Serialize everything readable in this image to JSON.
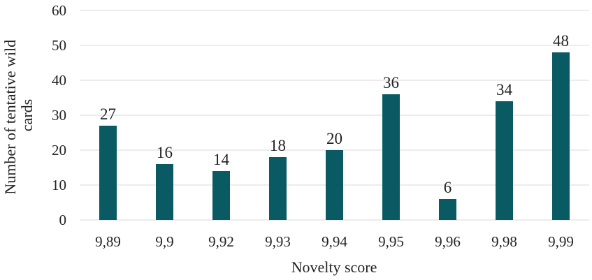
{
  "chart_data": {
    "type": "bar",
    "categories": [
      "9,89",
      "9,9",
      "9,92",
      "9,93",
      "9,94",
      "9,95",
      "9,96",
      "9,98",
      "9,99"
    ],
    "values": [
      27,
      16,
      14,
      18,
      20,
      36,
      6,
      34,
      48
    ],
    "xlabel": "Novelty score",
    "ylabel": [
      "Number of tentative wild",
      "cards"
    ],
    "ylim": [
      0,
      60
    ],
    "yticks": [
      "0",
      "10",
      "20",
      "30",
      "40",
      "50",
      "60"
    ],
    "grid": true,
    "data_labels": true,
    "legend": "none",
    "bar_color": "#0a5a63",
    "grid_color": "#d9d9d9"
  }
}
